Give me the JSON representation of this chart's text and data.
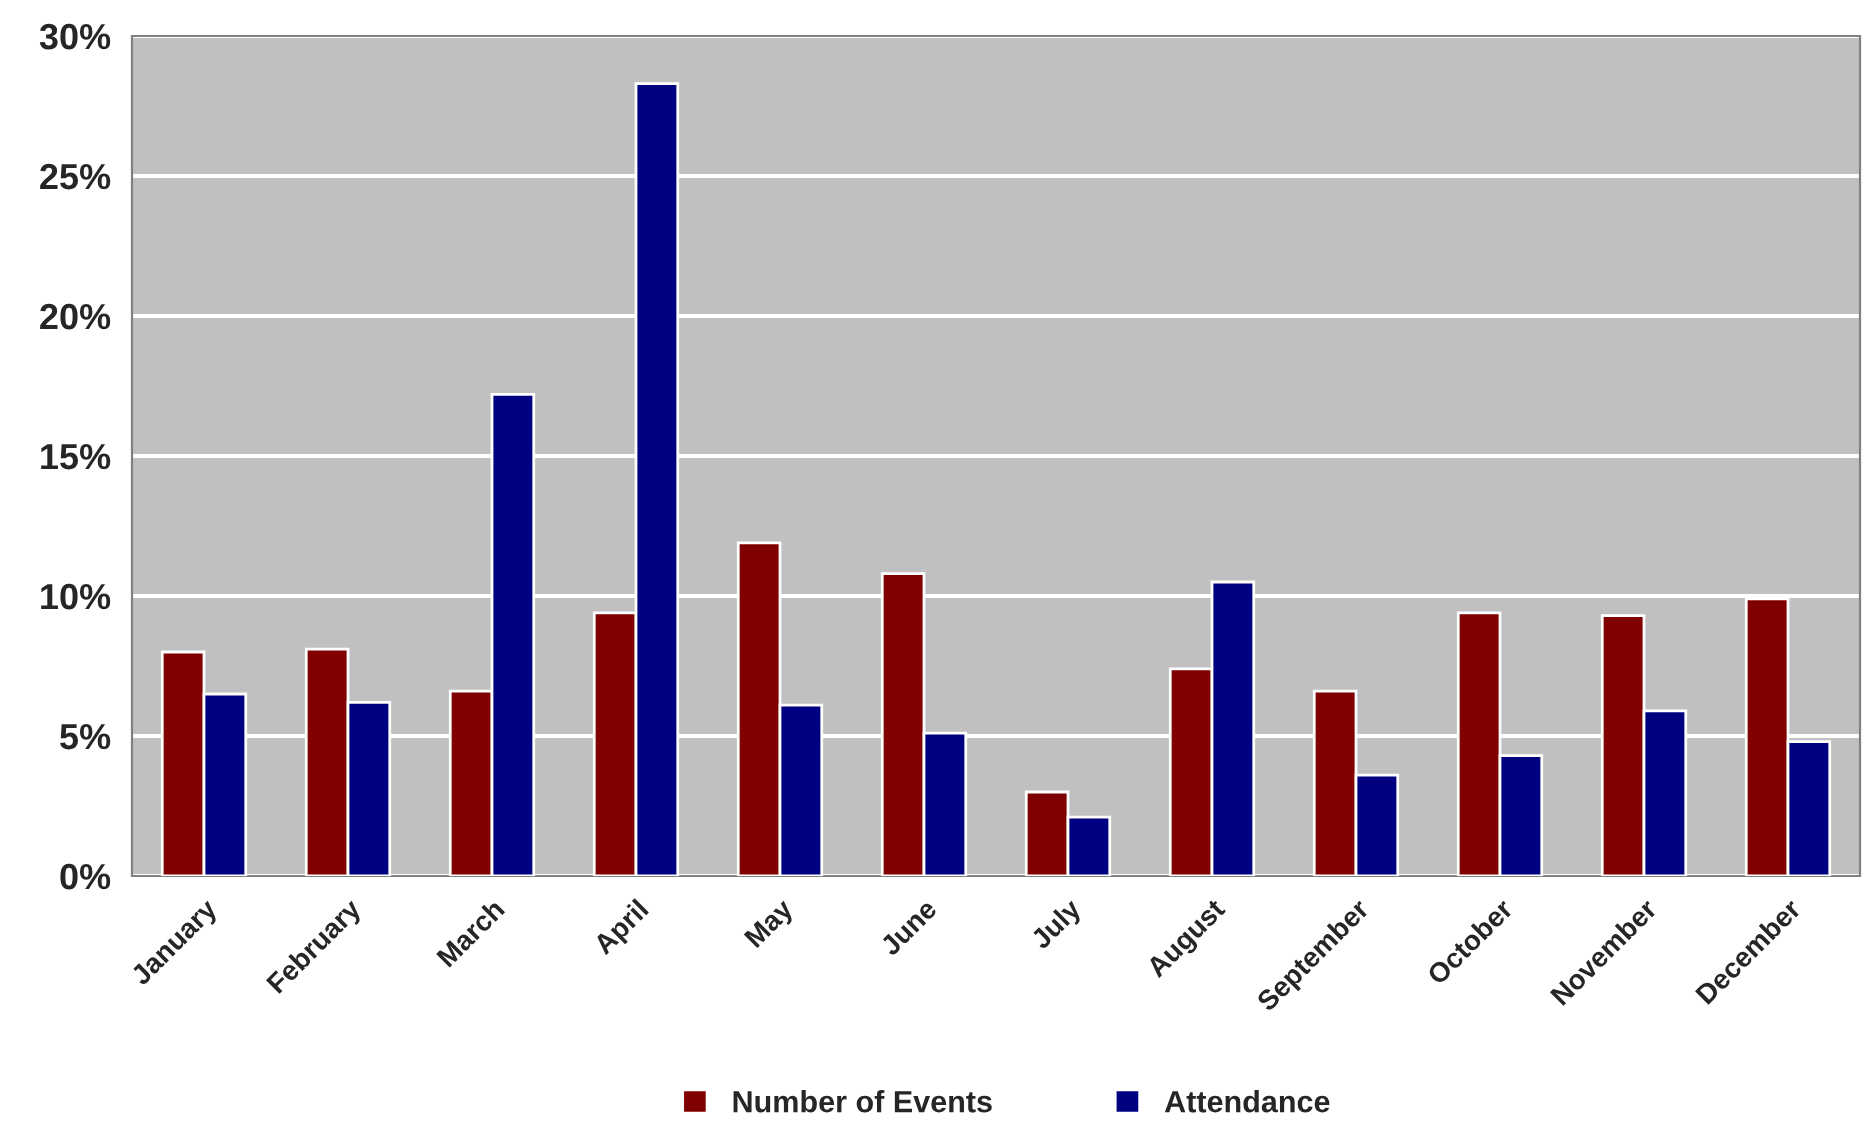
{
  "chart_data": {
    "type": "bar",
    "categories": [
      "January",
      "February",
      "March",
      "April",
      "May",
      "June",
      "July",
      "August",
      "September",
      "October",
      "November",
      "December"
    ],
    "series": [
      {
        "name": "Number of Events",
        "color": "#800000",
        "values": [
          8.0,
          8.1,
          6.6,
          9.4,
          11.9,
          10.8,
          3.0,
          7.4,
          6.6,
          9.4,
          9.3,
          9.9
        ]
      },
      {
        "name": "Attendance",
        "color": "#000080",
        "values": [
          6.5,
          6.2,
          17.2,
          28.3,
          6.1,
          5.1,
          2.1,
          10.5,
          3.6,
          4.3,
          5.9,
          4.8
        ]
      }
    ],
    "ylim": [
      0,
      30
    ],
    "yticks": [
      {
        "value": 0,
        "label": "0%"
      },
      {
        "value": 5,
        "label": "5%"
      },
      {
        "value": 10,
        "label": "10%"
      },
      {
        "value": 15,
        "label": "15%"
      },
      {
        "value": 20,
        "label": "20%"
      },
      {
        "value": 25,
        "label": "25%"
      },
      {
        "value": 30,
        "label": "30%"
      }
    ],
    "grid": "y",
    "legend": "bottom"
  }
}
